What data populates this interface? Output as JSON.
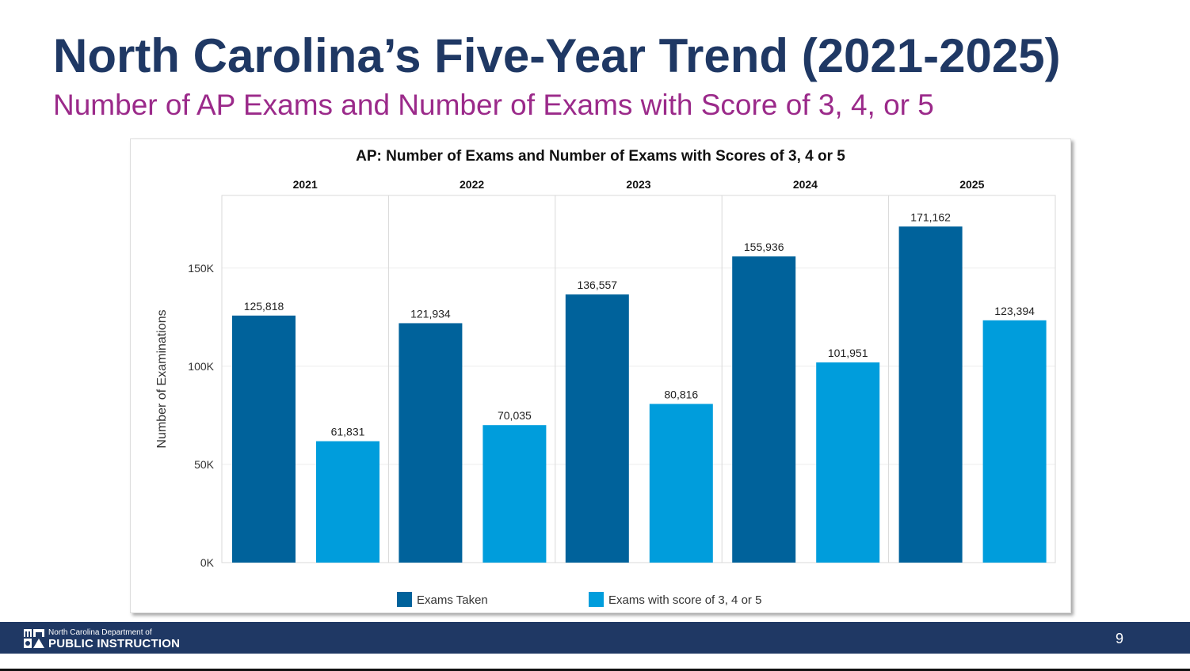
{
  "slide": {
    "title": "North Carolina’s Five-Year Trend (2021-2025)",
    "subtitle": "Number of AP Exams and Number of Exams with Score of 3, 4, or 5",
    "page_number": "9"
  },
  "footer": {
    "org_line1": "North Carolina Department of",
    "org_line2": "PUBLIC INSTRUCTION",
    "background": "#1f3864"
  },
  "chart_data": {
    "type": "bar",
    "title": "AP: Number of Exams and Number of Exams with Scores of 3, 4 or 5",
    "ylabel": "Number of Examinations",
    "xlabel": "",
    "categories": [
      "2021",
      "2022",
      "2023",
      "2024",
      "2025"
    ],
    "series": [
      {
        "name": "Exams Taken",
        "color": "#00629b",
        "values": [
          125818,
          121934,
          136557,
          155936,
          171162
        ],
        "labels": [
          "125,818",
          "121,934",
          "136,557",
          "155,936",
          "171,162"
        ]
      },
      {
        "name": "Exams with score of 3, 4 or 5",
        "color": "#009ddc",
        "values": [
          61831,
          70035,
          80816,
          101951,
          123394
        ],
        "labels": [
          "61,831",
          "70,035",
          "80,816",
          "101,951",
          "123,394"
        ]
      }
    ],
    "yticks": [
      0,
      50000,
      100000,
      150000
    ],
    "ytick_labels": [
      "0K",
      "50K",
      "100K",
      "150K"
    ],
    "ylim": [
      0,
      187000
    ],
    "grid": true,
    "legend": "bottom"
  }
}
